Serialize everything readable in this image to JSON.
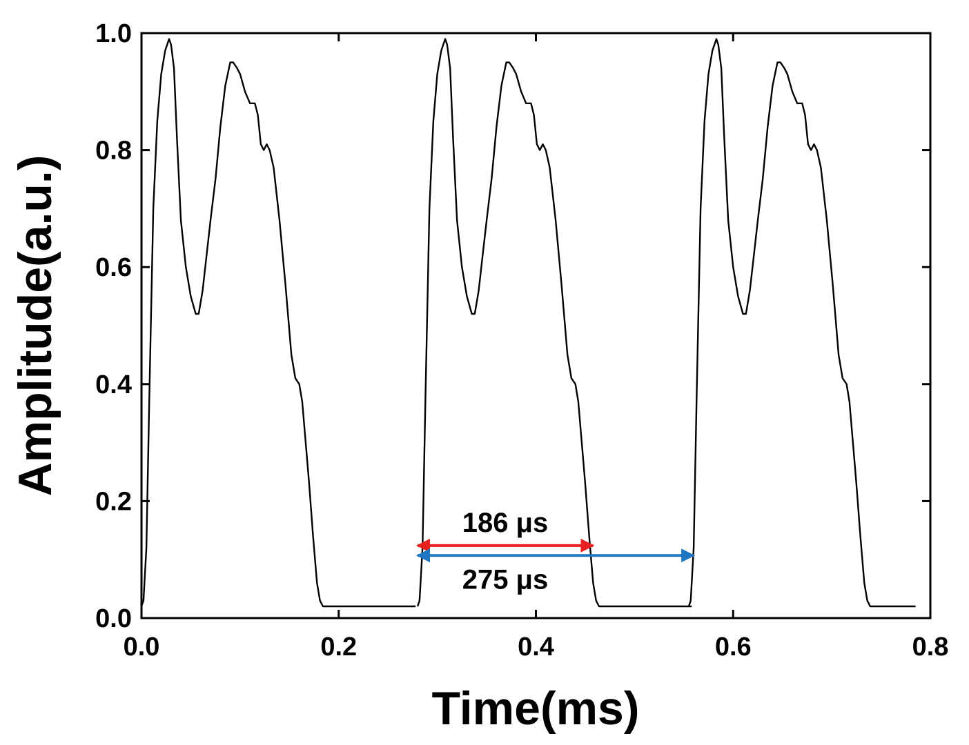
{
  "chart_data": {
    "type": "line",
    "title": "",
    "xlabel": "Time(ms)",
    "ylabel": "Amplitude(a.u.)",
    "xlim": [
      0.0,
      0.8
    ],
    "ylim": [
      0.0,
      1.0
    ],
    "xticks": [
      0.0,
      0.2,
      0.4,
      0.6,
      0.8
    ],
    "yticks": [
      0.0,
      0.2,
      0.4,
      0.6,
      0.8,
      1.0
    ],
    "xtick_labels": [
      "0.0",
      "0.2",
      "0.4",
      "0.6",
      "0.8"
    ],
    "ytick_labels": [
      "0.0",
      "0.2",
      "0.4",
      "0.6",
      "0.8",
      "1.0"
    ],
    "grid": false,
    "legend": null,
    "line_color": "#000000",
    "period_ms": 0.275,
    "pulse_starts_ms": [
      0.0,
      0.28,
      0.555
    ],
    "series": [
      {
        "x": [
          0.0,
          0.002,
          0.005,
          0.008,
          0.012,
          0.016,
          0.02,
          0.024,
          0.028,
          0.03,
          0.033,
          0.036,
          0.04,
          0.045,
          0.05,
          0.055,
          0.058,
          0.062,
          0.066,
          0.07,
          0.075,
          0.08,
          0.085,
          0.09,
          0.093,
          0.097,
          0.1,
          0.105,
          0.11,
          0.115,
          0.118,
          0.121,
          0.124,
          0.127,
          0.13,
          0.134,
          0.14,
          0.146,
          0.152,
          0.156,
          0.16,
          0.163,
          0.166,
          0.17,
          0.174,
          0.178,
          0.181,
          0.184,
          0.19,
          0.2,
          0.21,
          0.22,
          0.23,
          0.24,
          0.25,
          0.26,
          0.27,
          0.278
        ],
        "y": [
          0.02,
          0.03,
          0.12,
          0.38,
          0.7,
          0.85,
          0.93,
          0.97,
          0.99,
          0.98,
          0.94,
          0.82,
          0.68,
          0.6,
          0.55,
          0.52,
          0.52,
          0.56,
          0.62,
          0.68,
          0.75,
          0.84,
          0.91,
          0.95,
          0.95,
          0.94,
          0.93,
          0.9,
          0.88,
          0.88,
          0.86,
          0.81,
          0.8,
          0.81,
          0.8,
          0.77,
          0.68,
          0.57,
          0.45,
          0.41,
          0.4,
          0.37,
          0.31,
          0.23,
          0.14,
          0.06,
          0.03,
          0.02,
          0.02,
          0.02,
          0.02,
          0.02,
          0.02,
          0.02,
          0.02,
          0.02,
          0.02,
          0.02
        ]
      }
    ],
    "annotations": [
      {
        "text": "186 μs",
        "x_start": 0.28,
        "x_end": 0.458,
        "y": 0.124,
        "color": "#e8201f",
        "label_position": "above"
      },
      {
        "text": "275 μs",
        "x_start": 0.28,
        "x_end": 0.56,
        "y": 0.107,
        "color": "#1f77c4",
        "label_position": "below"
      }
    ]
  }
}
